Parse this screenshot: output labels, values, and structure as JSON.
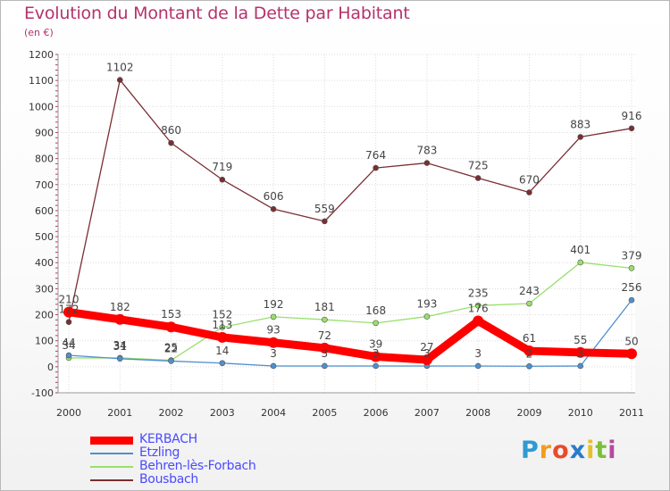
{
  "header": {
    "title": "Evolution du Montant de la Dette par Habitant",
    "subtitle": "(en €)"
  },
  "logo": {
    "letters": [
      "P",
      "r",
      "o",
      "x",
      "i",
      "t",
      "i"
    ],
    "colors": [
      "#2f9ad3",
      "#f39c1f",
      "#e84b2a",
      "#2b7bc9",
      "#e6c12c",
      "#7cbf3a",
      "#b64a9c"
    ]
  },
  "chart_data": {
    "type": "line",
    "x": [
      "2000",
      "2001",
      "2002",
      "2003",
      "2004",
      "2005",
      "2006",
      "2007",
      "2008",
      "2009",
      "2010",
      "2011"
    ],
    "ylim": [
      -100,
      1200
    ],
    "yticks": [
      -100,
      0,
      100,
      200,
      300,
      400,
      500,
      600,
      700,
      800,
      900,
      1000,
      1100,
      1200
    ],
    "grid": true,
    "legend_position": "bottom-left",
    "series": [
      {
        "name": "KERBACH",
        "color": "#ff0000",
        "values": [
          210,
          182,
          153,
          113,
          93,
          72,
          39,
          27,
          176,
          61,
          55,
          50
        ],
        "labels": [
          "210",
          "182",
          "153",
          "113",
          "93",
          "72",
          "39",
          "27",
          "176",
          "61",
          "55",
          "50"
        ]
      },
      {
        "name": "Etzling",
        "color": "#4f8fcf",
        "values": [
          44,
          31,
          22,
          14,
          3,
          3,
          3,
          3,
          3,
          2,
          3,
          256
        ],
        "labels": [
          "44",
          "31",
          "22",
          "14",
          "3",
          "3",
          "3",
          "3",
          "3",
          "2",
          "3",
          "256"
        ]
      },
      {
        "name": "Behren-lès-Forbach",
        "color": "#99e06b",
        "values": [
          34,
          34,
          25,
          152,
          192,
          181,
          168,
          193,
          235,
          243,
          401,
          379
        ],
        "labels": [
          "34",
          "34",
          "25",
          "152",
          "192",
          "181",
          "168",
          "193",
          "235",
          "243",
          "401",
          "379"
        ]
      },
      {
        "name": "Bousbach",
        "color": "#7a2e33",
        "values": [
          172,
          1102,
          860,
          719,
          606,
          559,
          764,
          783,
          725,
          670,
          883,
          916
        ],
        "labels": [
          "172",
          "1102",
          "860",
          "719",
          "606",
          "559",
          "764",
          "783",
          "725",
          "670",
          "883",
          "916"
        ]
      }
    ]
  }
}
